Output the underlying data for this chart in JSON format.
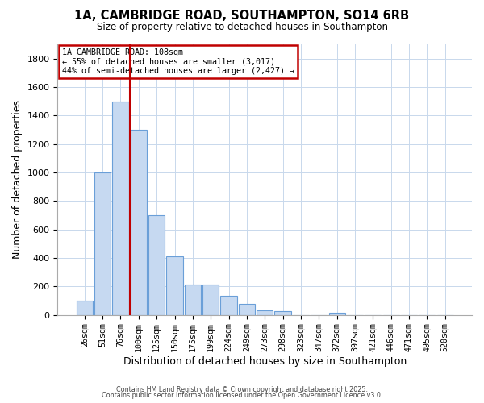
{
  "title": "1A, CAMBRIDGE ROAD, SOUTHAMPTON, SO14 6RB",
  "subtitle": "Size of property relative to detached houses in Southampton",
  "xlabel": "Distribution of detached houses by size in Southampton",
  "ylabel": "Number of detached properties",
  "categories": [
    "26sqm",
    "51sqm",
    "76sqm",
    "100sqm",
    "125sqm",
    "150sqm",
    "175sqm",
    "199sqm",
    "224sqm",
    "249sqm",
    "273sqm",
    "298sqm",
    "323sqm",
    "347sqm",
    "372sqm",
    "397sqm",
    "421sqm",
    "446sqm",
    "471sqm",
    "495sqm",
    "520sqm"
  ],
  "values": [
    100,
    1000,
    1500,
    1300,
    700,
    410,
    215,
    215,
    135,
    75,
    35,
    25,
    0,
    0,
    15,
    0,
    0,
    0,
    0,
    0,
    0
  ],
  "bar_color": "#c6d9f1",
  "bar_edge_color": "#6a9fd8",
  "ylim": [
    0,
    1900
  ],
  "yticks": [
    0,
    200,
    400,
    600,
    800,
    1000,
    1200,
    1400,
    1600,
    1800
  ],
  "vline_color": "#c00000",
  "annotation_title": "1A CAMBRIDGE ROAD: 108sqm",
  "annotation_line1": "← 55% of detached houses are smaller (3,017)",
  "annotation_line2": "44% of semi-detached houses are larger (2,427) →",
  "annotation_box_color": "#c00000",
  "background_color": "#ffffff",
  "grid_color": "#c8d8ec",
  "footer1": "Contains HM Land Registry data © Crown copyright and database right 2025.",
  "footer2": "Contains public sector information licensed under the Open Government Licence v3.0."
}
